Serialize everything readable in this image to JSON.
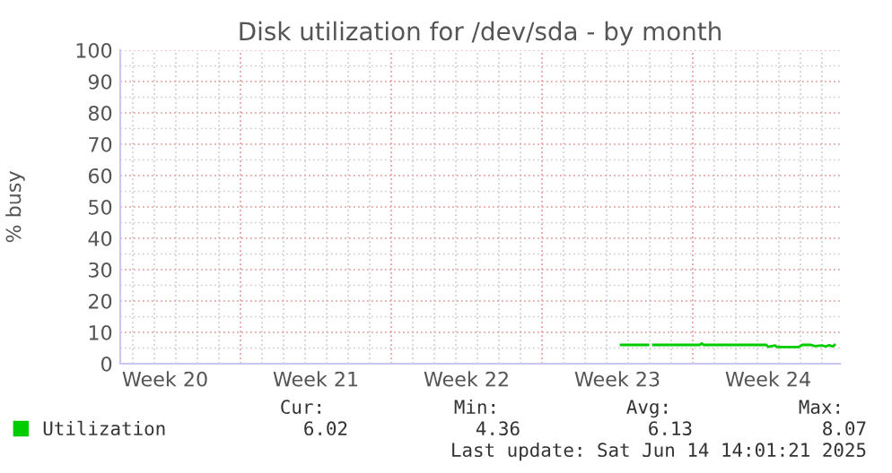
{
  "chart_data": {
    "type": "line",
    "title": "Disk utilization for /dev/sda - by month",
    "ylabel": "% busy",
    "x": [
      "2025-06-04T16:00",
      "2025-06-05T22:00",
      "2025-06-06T00:00",
      "2025-06-06T04:00",
      "2025-06-08T08:00",
      "2025-06-08T10:00",
      "2025-06-08T12:00",
      "2025-06-11T10:00",
      "2025-06-11T12:00",
      "2025-06-11T20:00",
      "2025-06-11T22:00",
      "2025-06-12T22:00",
      "2025-06-13T02:00",
      "2025-06-13T12:00",
      "2025-06-13T16:00",
      "2025-06-14T00:00",
      "2025-06-14T04:00",
      "2025-06-14T08:00",
      "2025-06-14T12:00",
      "2025-06-14T14:00"
    ],
    "series": [
      {
        "name": "Utilization",
        "color": "#00cc00",
        "values": [
          6.0,
          6.0,
          null,
          6.0,
          6.0,
          6.5,
          6.0,
          6.0,
          5.4,
          5.8,
          5.3,
          5.3,
          6.0,
          6.0,
          5.6,
          5.8,
          5.5,
          5.9,
          5.5,
          6.0
        ]
      }
    ],
    "xlim": [
      "2025-05-12T10:00",
      "2025-06-14T20:00"
    ],
    "xticks": [
      {
        "value": "2025-05-14T12:00",
        "label": "Week 20"
      },
      {
        "value": "2025-05-18T00:00",
        "label": null
      },
      {
        "value": "2025-05-21T12:00",
        "label": "Week 21"
      },
      {
        "value": "2025-05-25T00:00",
        "label": null
      },
      {
        "value": "2025-05-28T12:00",
        "label": "Week 22"
      },
      {
        "value": "2025-06-01T00:00",
        "label": null
      },
      {
        "value": "2025-06-04T12:00",
        "label": "Week 23"
      },
      {
        "value": "2025-06-08T00:00",
        "label": null
      },
      {
        "value": "2025-06-11T12:00",
        "label": "Week 24"
      }
    ],
    "ylim": [
      0,
      100
    ],
    "yticks": [
      0,
      10,
      20,
      30,
      40,
      50,
      60,
      70,
      80,
      90,
      100
    ],
    "grid": true,
    "legend": "bottom left",
    "marker": "none",
    "line_style": "solid",
    "annotations": [
      "Cur:",
      "Min:",
      "Avg:",
      "Max:",
      "6.02",
      "4.36",
      "6.13",
      "8.07",
      "Last update: Sat Jun 14 14:01:21 2025"
    ]
  }
}
